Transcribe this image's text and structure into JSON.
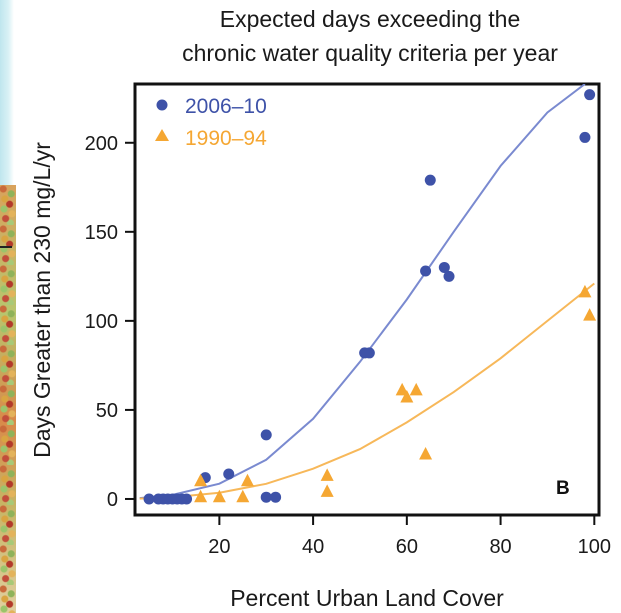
{
  "chart_data": {
    "type": "scatter",
    "title": [
      "Expected days exceeding the",
      "chronic water quality criteria per year"
    ],
    "xlabel": "Percent Urban Land Cover",
    "ylabel": "Days Greater than 230 mg/L/yr",
    "xlim": [
      2,
      101
    ],
    "ylim": [
      -9,
      233
    ],
    "xticks": [
      20,
      40,
      60,
      80,
      100
    ],
    "yticks": [
      0,
      50,
      100,
      150,
      200
    ],
    "panel_label": "B",
    "legend_position": "top-left",
    "grid": false,
    "series": [
      {
        "name": "2006–10",
        "marker": "circle",
        "color": "#3e52a8",
        "points": [
          [
            5,
            0
          ],
          [
            7,
            0
          ],
          [
            8,
            0
          ],
          [
            9,
            0
          ],
          [
            10,
            0
          ],
          [
            11,
            0
          ],
          [
            12,
            0
          ],
          [
            13,
            0
          ],
          [
            17,
            12
          ],
          [
            22,
            14
          ],
          [
            30,
            36
          ],
          [
            30,
            1
          ],
          [
            32,
            1
          ],
          [
            51,
            82
          ],
          [
            52,
            82
          ],
          [
            64,
            128
          ],
          [
            65,
            179
          ],
          [
            68,
            130
          ],
          [
            69,
            125
          ],
          [
            98,
            203
          ],
          [
            99,
            227
          ]
        ],
        "fit": {
          "x_start": 3,
          "x_end": 100,
          "curve": [
            [
              3,
              0.5
            ],
            [
              10,
              2.3
            ],
            [
              20,
              8.6
            ],
            [
              30,
              22
            ],
            [
              40,
              45
            ],
            [
              50,
              77
            ],
            [
              60,
              112
            ],
            [
              70,
              150
            ],
            [
              80,
              187
            ],
            [
              90,
              217
            ],
            [
              98,
              233
            ]
          ]
        }
      },
      {
        "name": "1990–94",
        "marker": "triangle",
        "color": "#f5a733",
        "points": [
          [
            16,
            10
          ],
          [
            16,
            1
          ],
          [
            20,
            1
          ],
          [
            25,
            1
          ],
          [
            26,
            10
          ],
          [
            43,
            13
          ],
          [
            43,
            4
          ],
          [
            59,
            61
          ],
          [
            60,
            57
          ],
          [
            62,
            61
          ],
          [
            64,
            25
          ],
          [
            98,
            116
          ],
          [
            99,
            103
          ]
        ],
        "fit": {
          "x_start": 3,
          "x_end": 100,
          "curve": [
            [
              3,
              0.2
            ],
            [
              10,
              1
            ],
            [
              20,
              3.5
            ],
            [
              30,
              8.5
            ],
            [
              40,
              17
            ],
            [
              50,
              28
            ],
            [
              60,
              43
            ],
            [
              70,
              60
            ],
            [
              80,
              79
            ],
            [
              90,
              100
            ],
            [
              100,
              121
            ]
          ]
        }
      }
    ]
  }
}
